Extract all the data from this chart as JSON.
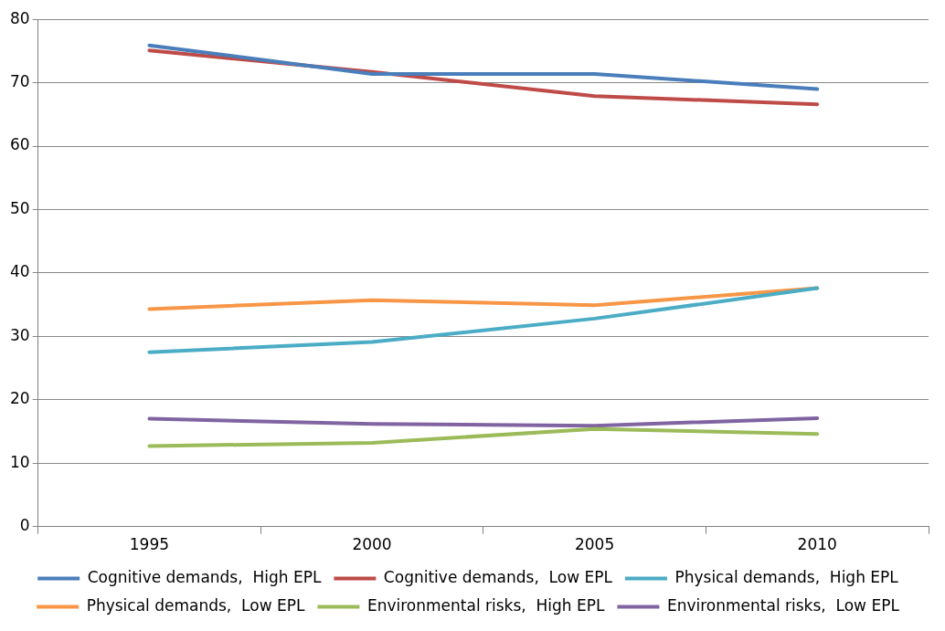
{
  "chart_data": {
    "type": "line",
    "categories": [
      "1995",
      "2000",
      "2005",
      "2010"
    ],
    "series": [
      {
        "name": "Cognitive demands,  High EPL",
        "color": "#4a7ebb",
        "values": [
          75.9,
          71.4,
          71.4,
          69.0
        ]
      },
      {
        "name": "Cognitive demands,  Low EPL",
        "color": "#be4b48",
        "values": [
          75.1,
          71.7,
          67.9,
          66.6
        ]
      },
      {
        "name": "Physical demands,  High EPL",
        "color": "#4bacc6",
        "values": [
          27.5,
          29.1,
          32.8,
          37.6
        ]
      },
      {
        "name": "Physical demands,  Low EPL",
        "color": "#f79646",
        "values": [
          34.3,
          35.7,
          34.9,
          37.6
        ]
      },
      {
        "name": "Environmental risks,  High EPL",
        "color": "#9bbb59",
        "values": [
          12.7,
          13.2,
          15.4,
          14.6
        ]
      },
      {
        "name": "Environmental risks,  Low EPL",
        "color": "#8064a2",
        "values": [
          17.0,
          16.2,
          15.9,
          17.1
        ]
      }
    ],
    "ylim": [
      0,
      80
    ],
    "yticks": [
      0,
      10,
      20,
      30,
      40,
      50,
      60,
      70,
      80
    ],
    "grid": "y",
    "legend": "bottom",
    "marker": "none",
    "line_style": "solid"
  }
}
